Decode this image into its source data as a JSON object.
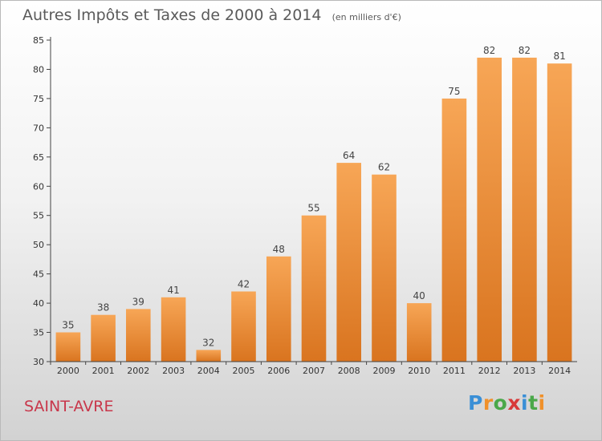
{
  "chart_data": {
    "type": "bar",
    "title": "Autres Impôts et Taxes de 2000 à 2014",
    "unit": "(en milliers d'€)",
    "categories": [
      "2000",
      "2001",
      "2002",
      "2003",
      "2004",
      "2005",
      "2006",
      "2007",
      "2008",
      "2009",
      "2010",
      "2011",
      "2012",
      "2013",
      "2014"
    ],
    "values": [
      35,
      38,
      39,
      41,
      32,
      42,
      48,
      55,
      64,
      62,
      40,
      75,
      82,
      82,
      81
    ],
    "ylim": [
      30,
      85
    ],
    "yticks": [
      30,
      35,
      40,
      45,
      50,
      55,
      60,
      65,
      70,
      75,
      80,
      85
    ],
    "grid": false,
    "bar_color": "#f0903a"
  },
  "footer": {
    "commune": "SAINT-AVRE",
    "logo_text": "Proxiti"
  },
  "colors": {
    "title": "#5a5a5a",
    "commune": "#c8374b",
    "logo": [
      "#3a8fd6",
      "#f0902a",
      "#4aa84a",
      "#d83a3a",
      "#3a8fd6",
      "#4aa84a",
      "#f0902a"
    ]
  }
}
